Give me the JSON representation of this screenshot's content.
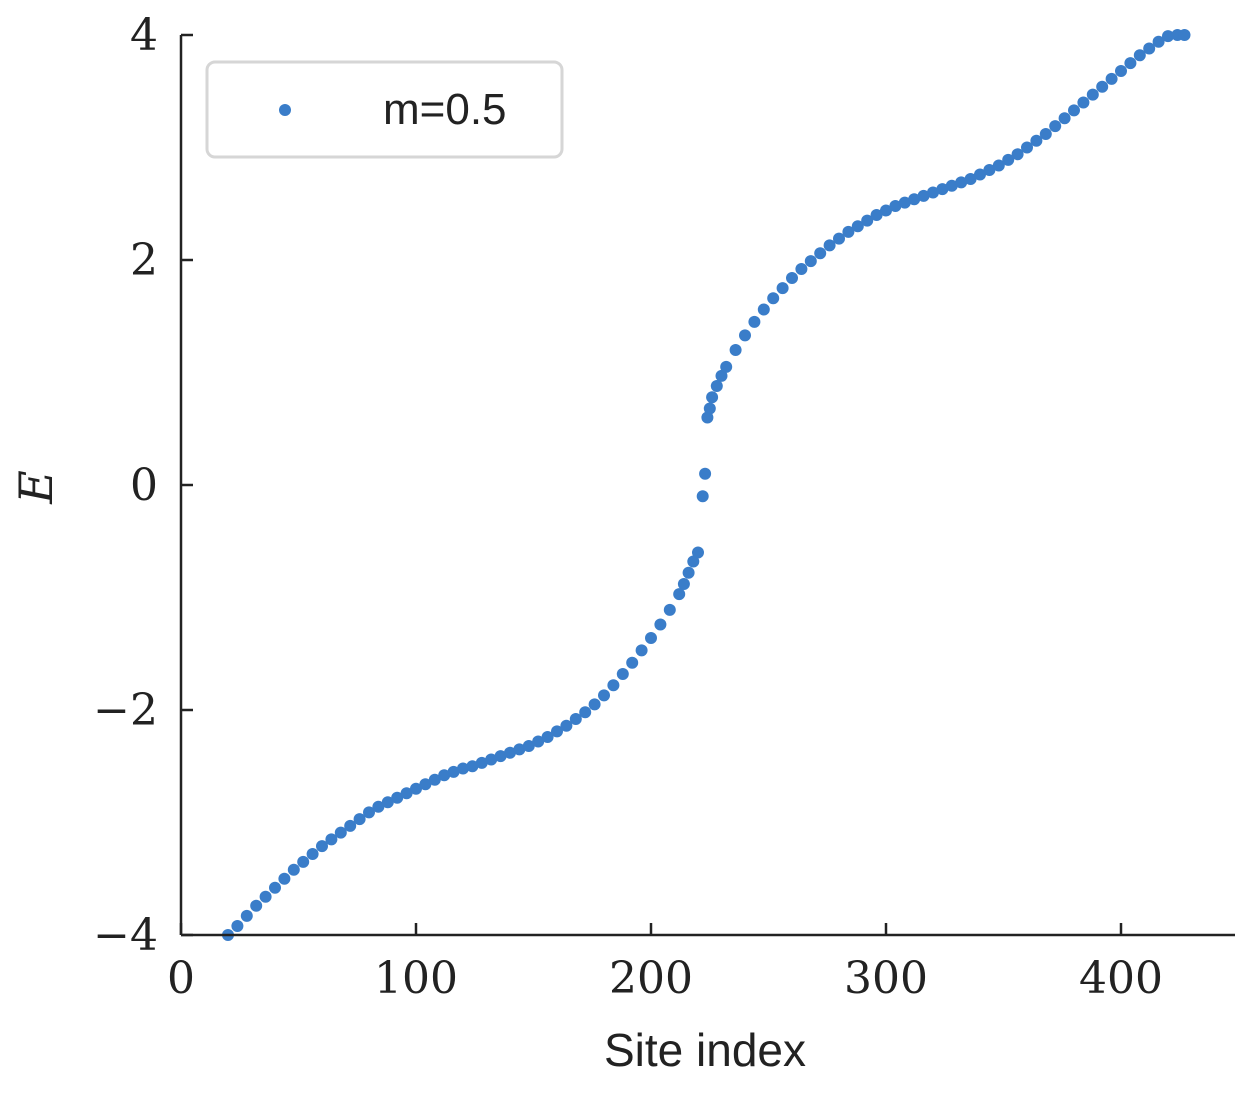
{
  "chart_data": {
    "type": "scatter",
    "title": "",
    "xlabel": "Site index",
    "ylabel": "E",
    "xlim": [
      0,
      450
    ],
    "ylim": [
      -4,
      4
    ],
    "xticks": [
      0,
      100,
      200,
      300,
      400
    ],
    "xtick_labels": [
      "0",
      "100",
      "200",
      "300",
      "400"
    ],
    "yticks": [
      -4,
      -2,
      0,
      2,
      4
    ],
    "ytick_labels": [
      "−4",
      "−2",
      "0",
      "2",
      "4"
    ],
    "grid": false,
    "legend": {
      "position": "top-left"
    },
    "series": [
      {
        "name": "m=0.5",
        "color": "#3a7dc9",
        "x": [
          20,
          24,
          28,
          32,
          36,
          40,
          44,
          48,
          52,
          56,
          60,
          64,
          68,
          72,
          76,
          80,
          84,
          88,
          92,
          96,
          100,
          104,
          108,
          112,
          116,
          120,
          124,
          128,
          132,
          136,
          140,
          144,
          148,
          152,
          156,
          160,
          164,
          168,
          172,
          176,
          180,
          184,
          188,
          192,
          196,
          200,
          204,
          208,
          212,
          214,
          216,
          218,
          220,
          222,
          223,
          224,
          225,
          226,
          228,
          230,
          232,
          236,
          240,
          244,
          248,
          252,
          256,
          260,
          264,
          268,
          272,
          276,
          280,
          284,
          288,
          292,
          296,
          300,
          304,
          308,
          312,
          316,
          320,
          324,
          328,
          332,
          336,
          340,
          344,
          348,
          352,
          356,
          360,
          364,
          368,
          372,
          376,
          380,
          384,
          388,
          392,
          396,
          400,
          404,
          408,
          412,
          416,
          420,
          424,
          427
        ],
        "y": [
          -4.0,
          -3.92,
          -3.83,
          -3.74,
          -3.66,
          -3.58,
          -3.5,
          -3.42,
          -3.35,
          -3.28,
          -3.21,
          -3.15,
          -3.09,
          -3.03,
          -2.97,
          -2.91,
          -2.86,
          -2.82,
          -2.78,
          -2.74,
          -2.7,
          -2.66,
          -2.62,
          -2.58,
          -2.55,
          -2.52,
          -2.5,
          -2.47,
          -2.44,
          -2.41,
          -2.38,
          -2.35,
          -2.32,
          -2.28,
          -2.24,
          -2.19,
          -2.14,
          -2.08,
          -2.02,
          -1.95,
          -1.87,
          -1.78,
          -1.68,
          -1.58,
          -1.47,
          -1.36,
          -1.24,
          -1.11,
          -0.97,
          -0.88,
          -0.78,
          -0.68,
          -0.6,
          -0.1,
          0.1,
          0.6,
          0.68,
          0.78,
          0.88,
          0.97,
          1.05,
          1.2,
          1.33,
          1.45,
          1.56,
          1.66,
          1.75,
          1.84,
          1.92,
          1.99,
          2.06,
          2.13,
          2.19,
          2.25,
          2.3,
          2.35,
          2.4,
          2.44,
          2.48,
          2.51,
          2.54,
          2.57,
          2.6,
          2.63,
          2.66,
          2.69,
          2.72,
          2.76,
          2.8,
          2.84,
          2.89,
          2.94,
          3.0,
          3.06,
          3.12,
          3.19,
          3.26,
          3.33,
          3.4,
          3.47,
          3.54,
          3.61,
          3.68,
          3.75,
          3.82,
          3.88,
          3.94,
          3.99,
          4.0,
          4.0
        ]
      }
    ]
  }
}
